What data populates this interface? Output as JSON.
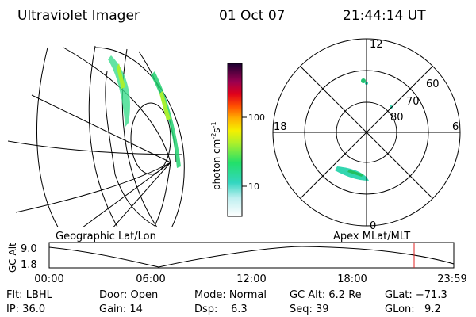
{
  "header": {
    "title": "Ultraviolet Imager",
    "date": "01 Oct 07",
    "time": "21:44:14 UT"
  },
  "colorbar": {
    "label": "photon cm",
    "exp1": "-2",
    "unit2": "s",
    "exp2": "-1",
    "ticks": [
      "100",
      "10"
    ]
  },
  "polar": {
    "mlt": [
      "12",
      "18",
      "6",
      "0"
    ],
    "mlat": [
      "60",
      "70",
      "80"
    ]
  },
  "map_labels": {
    "left": "Geographic Lat/Lon",
    "right": "Apex MLat/MLT"
  },
  "altitude": {
    "axis_label": "GC Alt",
    "ticks": [
      "9.0",
      "1.8"
    ],
    "times": [
      "00:00",
      "06:00",
      "12:00",
      "18:00",
      "23:59"
    ]
  },
  "footer": {
    "rows": [
      [
        "Flt: LBHL",
        "Door: Open",
        "Mode: Normal",
        "GC Alt: 6.2 Re",
        "GLat: −71.3"
      ],
      [
        "IP: 36.0",
        "Gain: 14",
        "Dsp:    6.3",
        "Seq: 39",
        "GLon:   9.2"
      ]
    ]
  }
}
